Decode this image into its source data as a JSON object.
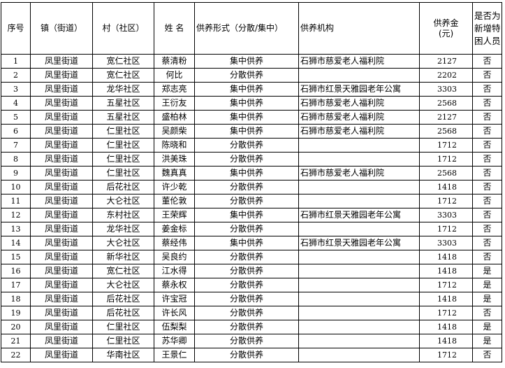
{
  "headers": [
    "序号",
    "镇（街道）",
    "村（社区）",
    "姓 名",
    "供养形式（分散/集中）",
    "供养机构",
    "供养金（元）",
    "是否为新增特困人员"
  ],
  "header_amount_lines": [
    "供养金",
    "(元)"
  ],
  "rows": [
    [
      "1",
      "凤里街道",
      "宽仁社区",
      "蔡清粉",
      "集中供养",
      "石狮市慈爱老人福利院",
      "2127",
      "否"
    ],
    [
      "2",
      "凤里街道",
      "宽仁社区",
      "何比",
      "分散供养",
      "",
      "2202",
      "否"
    ],
    [
      "3",
      "凤里街道",
      "龙华社区",
      "郑志亮",
      "集中供养",
      "石狮市红景天雅园老年公寓",
      "3303",
      "否"
    ],
    [
      "4",
      "凤里街道",
      "五星社区",
      "王衍友",
      "集中供养",
      "石狮市慈爱老人福利院",
      "2568",
      "否"
    ],
    [
      "5",
      "凤里街道",
      "五星社区",
      "盛柏林",
      "集中供养",
      "石狮市慈爱老人福利院",
      "2127",
      "否"
    ],
    [
      "6",
      "凤里街道",
      "仁里社区",
      "吴颜柴",
      "集中供养",
      "石狮市慈爱老人福利院",
      "2568",
      "否"
    ],
    [
      "7",
      "凤里街道",
      "仁里社区",
      "陈晓和",
      "分散供养",
      "",
      "1712",
      "否"
    ],
    [
      "8",
      "凤里街道",
      "仁里社区",
      "洪美珠",
      "分散供养",
      "",
      "1712",
      "否"
    ],
    [
      "9",
      "凤里街道",
      "仁里社区",
      "魏真真",
      "集中供养",
      "石狮市慈爱老人福利院",
      "2568",
      "否"
    ],
    [
      "10",
      "凤里街道",
      "后花社区",
      "许少乾",
      "分散供养",
      "",
      "1418",
      "否"
    ],
    [
      "11",
      "凤里街道",
      "大仑社区",
      "董伦敦",
      "分散供养",
      "",
      "1712",
      "否"
    ],
    [
      "12",
      "凤里街道",
      "东村社区",
      "王荣辉",
      "集中供养",
      "石狮市红景天雅园老年公寓",
      "3303",
      "否"
    ],
    [
      "13",
      "凤里街道",
      "龙华社区",
      "姜金标",
      "分散供养",
      "",
      "1712",
      "否"
    ],
    [
      "14",
      "凤里街道",
      "大仑社区",
      "蔡经伟",
      "集中供养",
      "石狮市红景天雅园老年公寓",
      "3303",
      "否"
    ],
    [
      "15",
      "凤里街道",
      "新华社区",
      "吴良约",
      "分散供养",
      "",
      "1418",
      "否"
    ],
    [
      "16",
      "凤里街道",
      "宽仁社区",
      "江水得",
      "分散供养",
      "",
      "1418",
      "是"
    ],
    [
      "17",
      "凤里街道",
      "大仑社区",
      "蔡永权",
      "分散供养",
      "",
      "1712",
      "是"
    ],
    [
      "18",
      "凤里街道",
      "后花社区",
      "许宝冠",
      "分散供养",
      "",
      "1418",
      "是"
    ],
    [
      "19",
      "凤里街道",
      "后花社区",
      "许长风",
      "分散供养",
      "",
      "1712",
      "否"
    ],
    [
      "20",
      "凤里街道",
      "仁里社区",
      "伍梨梨",
      "分散供养",
      "",
      "1418",
      "是"
    ],
    [
      "21",
      "凤里街道",
      "仁里社区",
      "苏华卿",
      "分散供养",
      "",
      "1418",
      "是"
    ],
    [
      "22",
      "凤里街道",
      "华南社区",
      "王景仁",
      "分散供养",
      "",
      "1712",
      "否"
    ]
  ]
}
